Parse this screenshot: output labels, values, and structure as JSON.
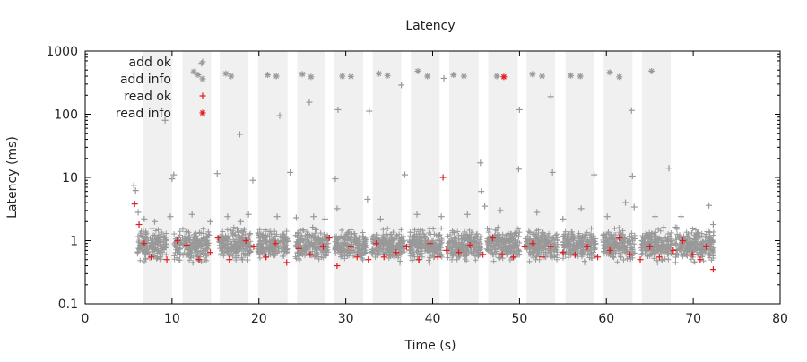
{
  "chart_data": {
    "type": "scatter",
    "title": "Latency",
    "xlabel": "Time (s)",
    "ylabel": "Latency (ms)",
    "xlim": [
      0,
      80
    ],
    "ylim": [
      0.1,
      1000
    ],
    "yscale": "log",
    "grid": false,
    "legend_position": "top-left",
    "x_ticks": [
      {
        "value": 0,
        "label": "0"
      },
      {
        "value": 10,
        "label": "10"
      },
      {
        "value": 20,
        "label": "20"
      },
      {
        "value": 30,
        "label": "30"
      },
      {
        "value": 40,
        "label": "40"
      },
      {
        "value": 50,
        "label": "50"
      },
      {
        "value": 60,
        "label": "60"
      },
      {
        "value": 70,
        "label": "70"
      },
      {
        "value": 80,
        "label": "80"
      }
    ],
    "y_ticks": [
      {
        "value": 0.1,
        "label": "0.1"
      },
      {
        "value": 1,
        "label": "1"
      },
      {
        "value": 10,
        "label": "10"
      },
      {
        "value": 100,
        "label": "100"
      },
      {
        "value": 1000,
        "label": "1000"
      }
    ],
    "shaded_intervals": [
      [
        6.7,
        10.0
      ],
      [
        11.2,
        14.5
      ],
      [
        15.5,
        18.8
      ],
      [
        19.9,
        23.3
      ],
      [
        24.4,
        27.6
      ],
      [
        28.7,
        32.0
      ],
      [
        33.1,
        36.4
      ],
      [
        37.5,
        40.8
      ],
      [
        41.9,
        45.3
      ],
      [
        46.4,
        49.8
      ],
      [
        50.8,
        54.1
      ],
      [
        55.3,
        58.6
      ],
      [
        59.7,
        63.0
      ],
      [
        64.1,
        67.4
      ]
    ],
    "colors": {
      "add": "#999999",
      "read": "#e41a1c",
      "shade": "#f0f0f0"
    },
    "series": [
      {
        "name": "add ok",
        "marker": "plus",
        "color": "#999999",
        "points": [
          [
            5.6,
            7.5
          ],
          [
            5.8,
            6.2
          ],
          [
            6.1,
            2.8
          ],
          [
            6.8,
            2.2
          ],
          [
            8.0,
            2.0
          ],
          [
            9.8,
            2.4
          ],
          [
            10.2,
            11.0
          ],
          [
            10.0,
            9.5
          ],
          [
            12.3,
            2.6
          ],
          [
            14.4,
            2.0
          ],
          [
            15.2,
            11.5
          ],
          [
            16.4,
            2.4
          ],
          [
            17.9,
            2.0
          ],
          [
            18.8,
            2.6
          ],
          [
            19.3,
            9.0
          ],
          [
            22.1,
            2.4
          ],
          [
            23.6,
            12.0
          ],
          [
            24.3,
            2.3
          ],
          [
            26.3,
            2.4
          ],
          [
            27.6,
            2.2
          ],
          [
            28.8,
            9.5
          ],
          [
            29.0,
            3.2
          ],
          [
            32.5,
            4.5
          ],
          [
            34.0,
            2.2
          ],
          [
            36.8,
            11.0
          ],
          [
            38.2,
            2.6
          ],
          [
            41.0,
            2.4
          ],
          [
            44.0,
            2.6
          ],
          [
            45.5,
            17.0
          ],
          [
            45.6,
            6.0
          ],
          [
            46.0,
            3.5
          ],
          [
            47.8,
            3.0
          ],
          [
            49.9,
            13.5
          ],
          [
            52.0,
            2.8
          ],
          [
            53.8,
            12.0
          ],
          [
            55.0,
            2.2
          ],
          [
            57.1,
            3.2
          ],
          [
            58.6,
            11.0
          ],
          [
            60.1,
            2.4
          ],
          [
            62.2,
            4.0
          ],
          [
            63.0,
            10.5
          ],
          [
            63.2,
            3.4
          ],
          [
            65.6,
            2.4
          ],
          [
            67.2,
            14.0
          ],
          [
            68.6,
            2.4
          ],
          [
            71.8,
            3.6
          ],
          [
            72.3,
            1.8
          ],
          [
            9.2,
            80.0
          ],
          [
            13.4,
            640.0
          ],
          [
            17.8,
            48.0
          ],
          [
            22.4,
            95.0
          ],
          [
            25.8,
            155.0
          ],
          [
            29.1,
            118.0
          ],
          [
            32.7,
            112.0
          ],
          [
            36.4,
            290.0
          ],
          [
            41.3,
            370.0
          ],
          [
            50.0,
            118.0
          ],
          [
            53.6,
            190.0
          ],
          [
            62.9,
            115.0
          ]
        ]
      },
      {
        "name": "add info",
        "marker": "star",
        "color": "#999999",
        "points": [
          [
            12.5,
            470.0
          ],
          [
            13.0,
            420.0
          ],
          [
            16.2,
            440.0
          ],
          [
            16.8,
            400.0
          ],
          [
            21.0,
            420.0
          ],
          [
            22.0,
            400.0
          ],
          [
            25.0,
            430.0
          ],
          [
            26.0,
            390.0
          ],
          [
            29.6,
            400.0
          ],
          [
            30.6,
            395.0
          ],
          [
            33.8,
            440.0
          ],
          [
            34.8,
            410.0
          ],
          [
            38.3,
            480.0
          ],
          [
            39.4,
            400.0
          ],
          [
            42.4,
            420.0
          ],
          [
            43.6,
            400.0
          ],
          [
            47.4,
            400.0
          ],
          [
            51.5,
            430.0
          ],
          [
            52.6,
            400.0
          ],
          [
            55.9,
            410.0
          ],
          [
            57.0,
            400.0
          ],
          [
            60.4,
            460.0
          ],
          [
            61.5,
            390.0
          ],
          [
            65.2,
            480.0
          ]
        ]
      },
      {
        "name": "read ok",
        "marker": "plus",
        "color": "#e41a1c",
        "points": [
          [
            5.7,
            3.8
          ],
          [
            6.2,
            1.8
          ],
          [
            6.8,
            0.9
          ],
          [
            7.6,
            0.55
          ],
          [
            9.4,
            0.5
          ],
          [
            10.6,
            1.0
          ],
          [
            11.7,
            0.85
          ],
          [
            13.1,
            0.5
          ],
          [
            14.4,
            0.65
          ],
          [
            15.3,
            1.1
          ],
          [
            16.6,
            0.5
          ],
          [
            18.5,
            1.0
          ],
          [
            19.4,
            0.8
          ],
          [
            20.8,
            0.55
          ],
          [
            21.9,
            0.9
          ],
          [
            23.2,
            0.45
          ],
          [
            24.6,
            0.75
          ],
          [
            25.9,
            0.6
          ],
          [
            27.4,
            0.8
          ],
          [
            28.1,
            1.1
          ],
          [
            29.0,
            0.4
          ],
          [
            30.6,
            0.8
          ],
          [
            31.3,
            0.55
          ],
          [
            32.6,
            0.5
          ],
          [
            33.5,
            0.9
          ],
          [
            34.4,
            0.55
          ],
          [
            35.8,
            0.65
          ],
          [
            37.0,
            0.8
          ],
          [
            38.4,
            0.5
          ],
          [
            39.7,
            0.9
          ],
          [
            40.6,
            0.55
          ],
          [
            41.6,
            0.7
          ],
          [
            43.0,
            0.65
          ],
          [
            44.3,
            0.85
          ],
          [
            45.8,
            0.6
          ],
          [
            46.9,
            1.1
          ],
          [
            48.0,
            0.6
          ],
          [
            49.3,
            0.55
          ],
          [
            50.6,
            0.8
          ],
          [
            51.5,
            0.9
          ],
          [
            52.6,
            0.55
          ],
          [
            53.6,
            0.8
          ],
          [
            55.0,
            0.65
          ],
          [
            56.4,
            0.6
          ],
          [
            57.8,
            0.8
          ],
          [
            59.0,
            0.55
          ],
          [
            60.4,
            0.7
          ],
          [
            61.5,
            1.1
          ],
          [
            62.7,
            0.6
          ],
          [
            63.9,
            0.5
          ],
          [
            65.0,
            0.8
          ],
          [
            66.1,
            0.55
          ],
          [
            67.7,
            0.7
          ],
          [
            68.8,
            1.0
          ],
          [
            69.9,
            0.6
          ],
          [
            70.8,
            0.5
          ],
          [
            71.5,
            0.8
          ],
          [
            72.3,
            0.35
          ],
          [
            41.2,
            10.0
          ]
        ]
      },
      {
        "name": "read info",
        "marker": "star",
        "color": "#e41a1c",
        "points": [
          [
            48.2,
            390.0
          ]
        ]
      }
    ],
    "clusters": {
      "description_free_note": "",
      "segments": [
        [
          6.0,
          9.4
        ],
        [
          10.2,
          14.3
        ],
        [
          15.4,
          19.1
        ],
        [
          19.8,
          23.4
        ],
        [
          24.2,
          28.0
        ],
        [
          28.7,
          32.4
        ],
        [
          33.0,
          36.8
        ],
        [
          37.3,
          41.1
        ],
        [
          41.7,
          45.6
        ],
        [
          46.2,
          50.0
        ],
        [
          50.7,
          54.4
        ],
        [
          55.0,
          58.8
        ],
        [
          59.6,
          63.3
        ],
        [
          64.0,
          67.6
        ],
        [
          67.9,
          72.4
        ]
      ],
      "median_latency": 0.8,
      "spread_low": 0.4,
      "spread_high": 1.8
    }
  }
}
